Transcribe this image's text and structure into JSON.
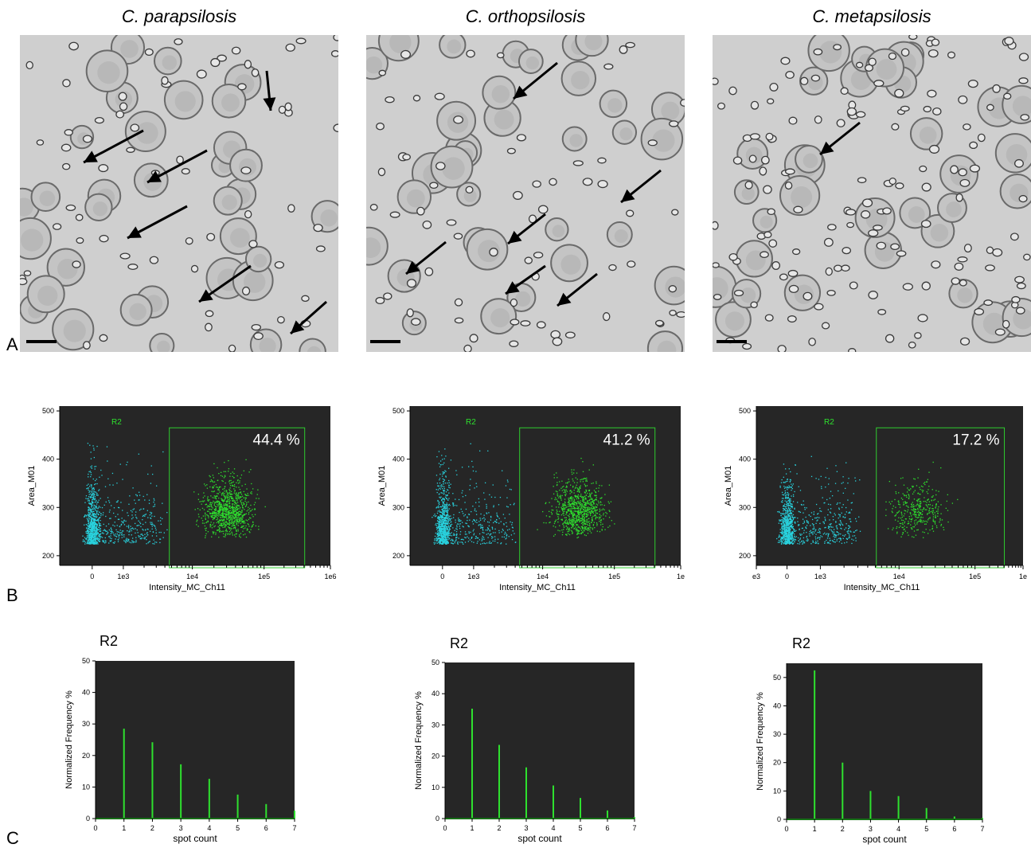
{
  "figure": {
    "panel_labels": {
      "a": "A",
      "b": "B",
      "c": "C"
    },
    "columns": [
      {
        "title": "C. parapsilosis",
        "gate_percent": "44.4 %",
        "hist_label": "R2"
      },
      {
        "title": "C. orthopsilosis",
        "gate_percent": "41.2 %",
        "hist_label": "R2"
      },
      {
        "title": "C. metapsilosis",
        "gate_percent": "17.2 %",
        "hist_label": "R2"
      }
    ],
    "scatter_axis": {
      "xlabel": "Intensity_MC_Ch11",
      "ylabel": "Area_M01",
      "gate_name": "R2",
      "yticks": [
        "200",
        "300",
        "400",
        "500"
      ],
      "xticks_sets": [
        [
          "0",
          "1e3",
          "1e4",
          "1e5",
          "1e6"
        ],
        [
          "0",
          "1e3",
          "1e4",
          "1e5",
          "1e"
        ],
        [
          "e3",
          "0",
          "1e3",
          "1e4",
          "1e5",
          "1e"
        ]
      ]
    },
    "hist_axis": {
      "xlabel": "spot count",
      "ylabel": "Normalized Frequency %",
      "xticks": [
        "0",
        "1",
        "2",
        "3",
        "4",
        "5",
        "6",
        "7"
      ]
    },
    "colors": {
      "plot_bg": "#262626",
      "cyan": "#29d3df",
      "green": "#2ee02e",
      "gate": "#2ecc2e",
      "micro_bg": "#cfcfcf"
    }
  },
  "chart_data": [
    {
      "type": "bar",
      "title": "R2",
      "xlabel": "spot count",
      "ylabel": "Normalized Frequency %",
      "categories": [
        1,
        2,
        3,
        4,
        5,
        6,
        7
      ],
      "values": [
        28.5,
        24.2,
        17.2,
        12.6,
        7.6,
        4.6,
        2.5
      ],
      "ylim": [
        0,
        50
      ],
      "yticks": [
        "0",
        "10",
        "20",
        "30",
        "40",
        "50"
      ]
    },
    {
      "type": "bar",
      "title": "R2",
      "xlabel": "spot count",
      "ylabel": "Normalized Frequency %",
      "categories": [
        1,
        2,
        3,
        4,
        5,
        6,
        7
      ],
      "values": [
        35.2,
        23.6,
        16.4,
        10.6,
        6.6,
        2.6,
        0.5
      ],
      "ylim": [
        0,
        50
      ],
      "yticks": [
        "0",
        "10",
        "20",
        "30",
        "40",
        "50"
      ]
    },
    {
      "type": "bar",
      "title": "R2",
      "xlabel": "spot count",
      "ylabel": "Normalized Frequency %",
      "categories": [
        1,
        2,
        3,
        4,
        5,
        6,
        7
      ],
      "values": [
        52.5,
        20,
        10,
        8.2,
        4,
        1,
        0.5
      ],
      "ylim": [
        0,
        55
      ],
      "yticks": [
        "0",
        "10",
        "20",
        "30",
        "40",
        "50"
      ]
    },
    {
      "type": "scatter",
      "title": "",
      "xlabel": "Intensity_MC_Ch11",
      "ylabel": "Area_M01",
      "ylim": [
        180,
        510
      ],
      "gate": {
        "name": "R2",
        "percent": 44.4,
        "x_from": 5000,
        "y_range": [
          175,
          465
        ]
      }
    },
    {
      "type": "scatter",
      "title": "",
      "xlabel": "Intensity_MC_Ch11",
      "ylabel": "Area_M01",
      "ylim": [
        180,
        510
      ],
      "gate": {
        "name": "R2",
        "percent": 41.2,
        "x_from": 5000,
        "y_range": [
          175,
          465
        ]
      }
    },
    {
      "type": "scatter",
      "title": "",
      "xlabel": "Intensity_MC_Ch11",
      "ylabel": "Area_M01",
      "ylim": [
        180,
        510
      ],
      "gate": {
        "name": "R2",
        "percent": 17.2,
        "x_from": 5000,
        "y_range": [
          175,
          465
        ]
      }
    }
  ]
}
